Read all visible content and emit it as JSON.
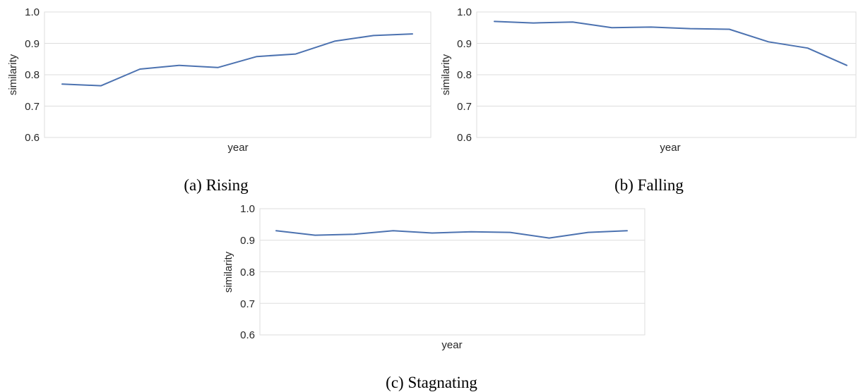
{
  "colors": {
    "line": "#4c72b0",
    "grid": "#dddddd"
  },
  "chart_data": [
    {
      "type": "line",
      "caption": "(a) Rising",
      "xlabel": "year",
      "ylabel": "similarity",
      "ylim": [
        0.6,
        1.0
      ],
      "yticks": [
        "0.6",
        "0.7",
        "0.8",
        "0.9",
        "1.0"
      ],
      "grid": true,
      "series": [
        {
          "values": [
            0.77,
            0.765,
            0.818,
            0.83,
            0.823,
            0.858,
            0.866,
            0.907,
            0.925,
            0.93
          ]
        }
      ]
    },
    {
      "type": "line",
      "caption": "(b) Falling",
      "xlabel": "year",
      "ylabel": "similarity",
      "ylim": [
        0.6,
        1.0
      ],
      "yticks": [
        "0.6",
        "0.7",
        "0.8",
        "0.9",
        "1.0"
      ],
      "grid": true,
      "series": [
        {
          "values": [
            0.97,
            0.965,
            0.968,
            0.95,
            0.952,
            0.947,
            0.945,
            0.905,
            0.885,
            0.83
          ]
        }
      ]
    },
    {
      "type": "line",
      "caption": "(c) Stagnating",
      "xlabel": "year",
      "ylabel": "similarity",
      "ylim": [
        0.6,
        1.0
      ],
      "yticks": [
        "0.6",
        "0.7",
        "0.8",
        "0.9",
        "1.0"
      ],
      "grid": true,
      "series": [
        {
          "values": [
            0.93,
            0.916,
            0.919,
            0.93,
            0.923,
            0.927,
            0.925,
            0.907,
            0.925,
            0.93
          ]
        }
      ]
    }
  ]
}
